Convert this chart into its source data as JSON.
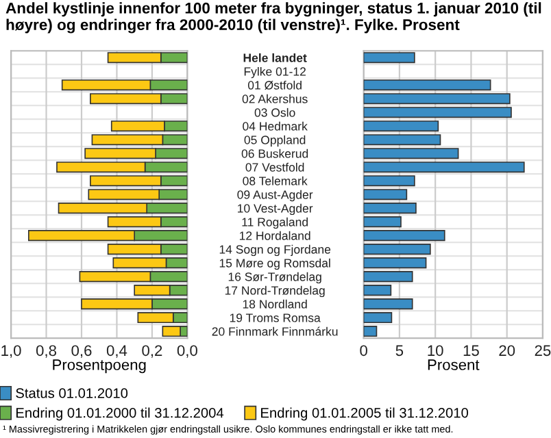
{
  "chart_data": [
    {
      "type": "bar",
      "orientation": "horizontal",
      "stacked": true,
      "title": "Andel kystlinje innenfor 100 meter fra bygninger, status 1. januar 2010 (til høyre) og endringer fra 2000-2010 (til venstre)¹. Fylke. Prosent",
      "xlabel": "Prosentpoeng",
      "categories": [
        "Hele landet",
        "Fylke 01-12",
        "01 Østfold",
        "02 Akershus",
        "03 Oslo",
        "04 Hedmark",
        "05 Oppland",
        "06 Buskerud",
        "07 Vestfold",
        "08 Telemark",
        "09 Aust-Agder",
        "10 Vest-Agder",
        "11 Rogaland",
        "12 Hordaland",
        "14 Sogn og Fjordane",
        "15 Møre og Romsdal",
        "16 Sør-Trøndelag",
        "17 Nord-Trøndelag",
        "18 Nordland",
        "19 Troms Romsa",
        "20 Finnmark Finnmárku"
      ],
      "series": [
        {
          "name": "Endring 01.01.2000 til 31.12.2004",
          "color": "#6ab04c",
          "values": [
            0.15,
            null,
            0.21,
            0.15,
            null,
            0.13,
            0.14,
            0.18,
            0.24,
            0.15,
            0.16,
            0.23,
            0.15,
            0.3,
            0.15,
            0.12,
            0.21,
            0.1,
            0.2,
            0.08,
            0.04
          ]
        },
        {
          "name": "Endring 01.01.2005 til 31.12.2010",
          "color": "#fcc814",
          "values": [
            0.3,
            null,
            0.5,
            0.4,
            null,
            0.3,
            0.4,
            0.4,
            0.5,
            0.4,
            0.4,
            0.5,
            0.3,
            0.6,
            0.3,
            0.3,
            0.4,
            0.2,
            0.4,
            0.2,
            0.1
          ]
        }
      ],
      "xlim": [
        1.0,
        0.0
      ],
      "xticks": [
        {
          "value": 1.0,
          "label": "1,0"
        },
        {
          "value": 0.8,
          "label": "0,8"
        },
        {
          "value": 0.6,
          "label": "0,6"
        },
        {
          "value": 0.4,
          "label": "0,4"
        },
        {
          "value": 0.2,
          "label": "0,2"
        },
        {
          "value": 0.0,
          "label": "0,0"
        }
      ],
      "grid": "x",
      "legend": "bottom",
      "annotations": [
        "¹ Massivregistrering i Matrikkelen gjør endringstall usikre. Oslo kommunes endringstall er ikke tatt med."
      ]
    },
    {
      "type": "bar",
      "orientation": "horizontal",
      "xlabel": "Prosent",
      "series": [
        {
          "name": "Status 01.01.2010",
          "color": "#3a8dc4",
          "values": [
            7.1,
            null,
            17.7,
            20.4,
            20.6,
            10.4,
            10.7,
            13.2,
            22.4,
            7.1,
            6.0,
            7.3,
            5.2,
            11.3,
            9.3,
            8.7,
            6.8,
            3.8,
            6.8,
            3.9,
            1.8
          ]
        }
      ],
      "xlim": [
        0,
        25
      ],
      "xticks": [
        0,
        5,
        10,
        15,
        20,
        25
      ],
      "grid": "x",
      "legend": "bottom",
      "tick_labels": "x"
    }
  ]
}
